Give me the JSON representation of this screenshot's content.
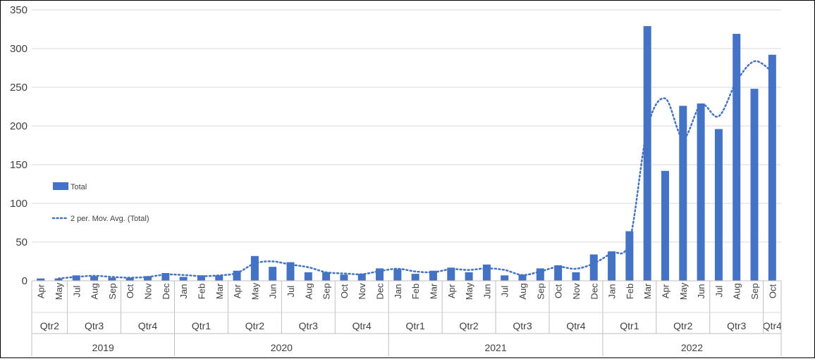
{
  "chart_data": {
    "type": "bar",
    "ylim": [
      0,
      350
    ],
    "yticks": [
      0,
      50,
      100,
      150,
      200,
      250,
      300,
      350
    ],
    "grid": true,
    "legend_position": "left",
    "categories": [
      "Apr",
      "May",
      "Jul",
      "Aug",
      "Sep",
      "Oct",
      "Nov",
      "Dec",
      "Jan",
      "Feb",
      "Mar",
      "Apr",
      "May",
      "Jun",
      "Jul",
      "Aug",
      "Sep",
      "Oct",
      "Nov",
      "Dec",
      "Jan",
      "Feb",
      "Mar",
      "Apr",
      "May",
      "Jun",
      "Jul",
      "Aug",
      "Sep",
      "Oct",
      "Nov",
      "Dec",
      "Jan",
      "Feb",
      "Mar",
      "Apr",
      "May",
      "Jun",
      "Jul",
      "Aug",
      "Sep",
      "Oct"
    ],
    "quarters": [
      {
        "label": "Qtr2",
        "count": 2
      },
      {
        "label": "Qtr3",
        "count": 3
      },
      {
        "label": "Qtr4",
        "count": 3
      },
      {
        "label": "Qtr1",
        "count": 3
      },
      {
        "label": "Qtr2",
        "count": 3
      },
      {
        "label": "Qtr3",
        "count": 3
      },
      {
        "label": "Qtr4",
        "count": 3
      },
      {
        "label": "Qtr1",
        "count": 3
      },
      {
        "label": "Qtr2",
        "count": 3
      },
      {
        "label": "Qtr3",
        "count": 3
      },
      {
        "label": "Qtr4",
        "count": 3
      },
      {
        "label": "Qtr1",
        "count": 3
      },
      {
        "label": "Qtr2",
        "count": 3
      },
      {
        "label": "Qtr3",
        "count": 3
      },
      {
        "label": "Qtr4",
        "count": 1
      }
    ],
    "years": [
      {
        "label": "2019",
        "count": 8
      },
      {
        "label": "2020",
        "count": 12
      },
      {
        "label": "2021",
        "count": 12
      },
      {
        "label": "2022",
        "count": 10
      }
    ],
    "series": [
      {
        "name": "Total",
        "type": "bar",
        "color": "#4472C4",
        "values": [
          3,
          3,
          7,
          6,
          4,
          4,
          6,
          10,
          5,
          7,
          7,
          13,
          32,
          18,
          24,
          11,
          11,
          8,
          9,
          16,
          15,
          9,
          13,
          17,
          11,
          21,
          7,
          8,
          16,
          20,
          11,
          34,
          38,
          64,
          329,
          142,
          226,
          229,
          196,
          319,
          248,
          292
        ]
      },
      {
        "name": "2 per. Mov. Avg. (Total)",
        "type": "line",
        "style": "dotted",
        "color": "#4472C4",
        "trendline_period": 2
      }
    ]
  }
}
